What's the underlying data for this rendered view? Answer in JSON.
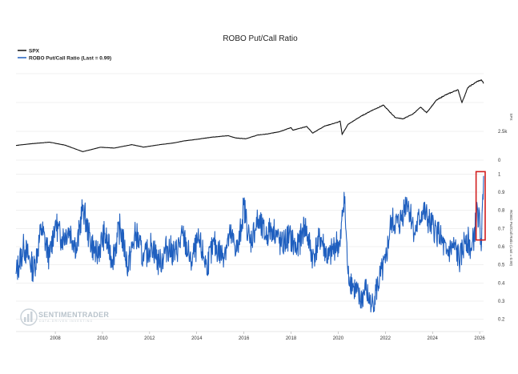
{
  "chart_data": {
    "type": "line",
    "title": "ROBO Put/Call Ratio",
    "legend": {
      "position": "top-left",
      "entries": [
        {
          "label": "SPX",
          "color": "#111111"
        },
        {
          "label": "ROBO Put/Call Ratio (Last = 0.99)",
          "color": "#1f5fbf"
        }
      ]
    },
    "x_axis": {
      "type": "date",
      "range": [
        "2006-05",
        "2026-03"
      ],
      "tick_labels": [
        "2008",
        "2010",
        "2012",
        "2014",
        "2016",
        "2018",
        "2020",
        "2022",
        "2024",
        "2026"
      ]
    },
    "panels": [
      {
        "name": "SPX",
        "y_label": "SPX",
        "y_ticks": [
          "0",
          "2.5k"
        ],
        "ylim": [
          0,
          7500
        ],
        "series": [
          {
            "name": "SPX",
            "color": "#111111",
            "x": [
              "2006-05",
              "2007-01",
              "2007-10",
              "2008-06",
              "2009-03",
              "2009-12",
              "2010-07",
              "2011-04",
              "2011-10",
              "2012-06",
              "2013-01",
              "2013-07",
              "2014-01",
              "2014-09",
              "2015-05",
              "2015-09",
              "2016-02",
              "2016-08",
              "2017-01",
              "2017-07",
              "2018-01",
              "2018-02",
              "2018-09",
              "2018-12",
              "2019-06",
              "2020-01",
              "2020-02",
              "2020-03",
              "2020-06",
              "2020-12",
              "2021-06",
              "2021-12",
              "2022-06",
              "2022-10",
              "2023-03",
              "2023-07",
              "2023-10",
              "2024-03",
              "2024-07",
              "2025-01",
              "2025-02",
              "2025-04",
              "2025-07",
              "2025-12",
              "2026-02",
              "2026-03"
            ],
            "values": [
              1280,
              1430,
              1560,
              1300,
              740,
              1120,
              1050,
              1350,
              1130,
              1340,
              1490,
              1680,
              1810,
              2000,
              2120,
              1920,
              1860,
              2180,
              2270,
              2470,
              2820,
              2600,
              2920,
              2350,
              2950,
              3300,
              3380,
              2240,
              3100,
              3750,
              4300,
              4770,
              3700,
              3580,
              4000,
              4590,
              4120,
              5200,
              5600,
              6050,
              6100,
              5000,
              6300,
              6850,
              6950,
              6650
            ]
          }
        ]
      },
      {
        "name": "ROBO Put/Call Ratio",
        "y_label": "ROBO Put/Call Ratio (Last = 0.99)",
        "y_ticks": [
          "0.2",
          "0.3",
          "0.4",
          "0.5",
          "0.6",
          "0.7",
          "0.8",
          "0.9",
          "1"
        ],
        "ylim": [
          0.15,
          1.05
        ],
        "series": [
          {
            "name": "ROBO Put/Call Ratio",
            "color": "#1f5fbf",
            "x": [
              "2006-05",
              "2006-09",
              "2007-02",
              "2007-06",
              "2007-10",
              "2008-01",
              "2008-04",
              "2008-08",
              "2008-12",
              "2009-03",
              "2009-06",
              "2009-10",
              "2010-02",
              "2010-06",
              "2010-10",
              "2011-02",
              "2011-06",
              "2011-10",
              "2012-02",
              "2012-06",
              "2012-10",
              "2013-02",
              "2013-06",
              "2013-10",
              "2014-02",
              "2014-06",
              "2014-10",
              "2015-02",
              "2015-06",
              "2015-10",
              "2016-01",
              "2016-04",
              "2016-08",
              "2016-12",
              "2017-04",
              "2017-08",
              "2017-12",
              "2018-04",
              "2018-08",
              "2018-12",
              "2019-04",
              "2019-08",
              "2019-12",
              "2020-02",
              "2020-04",
              "2020-06",
              "2020-09",
              "2020-12",
              "2021-03",
              "2021-06",
              "2021-10",
              "2022-01",
              "2022-04",
              "2022-08",
              "2022-12",
              "2023-04",
              "2023-08",
              "2023-12",
              "2024-04",
              "2024-08",
              "2024-12",
              "2025-03",
              "2025-06",
              "2025-09",
              "2025-12",
              "2026-02",
              "2026-03"
            ],
            "values": [
              0.45,
              0.6,
              0.47,
              0.7,
              0.54,
              0.74,
              0.64,
              0.7,
              0.59,
              0.83,
              0.66,
              0.55,
              0.67,
              0.53,
              0.71,
              0.49,
              0.68,
              0.52,
              0.62,
              0.5,
              0.6,
              0.56,
              0.66,
              0.52,
              0.63,
              0.5,
              0.61,
              0.55,
              0.66,
              0.58,
              0.83,
              0.62,
              0.74,
              0.66,
              0.71,
              0.6,
              0.66,
              0.58,
              0.72,
              0.54,
              0.65,
              0.53,
              0.62,
              0.6,
              0.9,
              0.45,
              0.38,
              0.3,
              0.36,
              0.27,
              0.42,
              0.51,
              0.74,
              0.72,
              0.86,
              0.68,
              0.8,
              0.72,
              0.67,
              0.56,
              0.6,
              0.52,
              0.66,
              0.58,
              0.8,
              0.63,
              0.99
            ]
          }
        ],
        "annotation": {
          "type": "box",
          "color": "#d21f1f",
          "x_from": "2025-12",
          "x_to": "2026-03",
          "y_from": 0.65,
          "y_to": 1.0
        }
      }
    ],
    "grid": true
  },
  "watermark": {
    "name": "SENTIMENTRADER",
    "tagline": "DATA-DRIVEN INVESTING"
  }
}
